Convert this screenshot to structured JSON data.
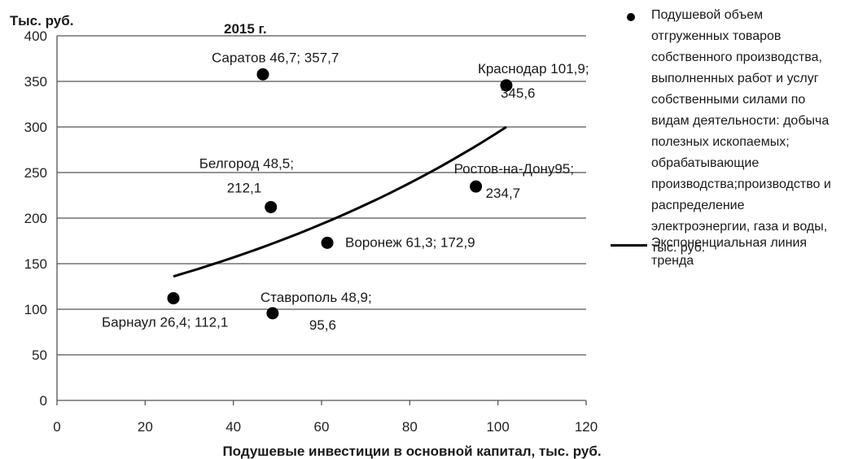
{
  "chart_data": {
    "type": "scatter",
    "title": "2015 г.",
    "xlabel": "Подушевые инвестиции  в основной  капитал,  тыс. руб.",
    "ylabel": "Тыс. руб.",
    "xlim": [
      0,
      120
    ],
    "ylim": [
      0,
      400
    ],
    "xticks": [
      "0",
      "20",
      "40",
      "60",
      "80",
      "100",
      "120"
    ],
    "yticks": [
      "0",
      "50",
      "100",
      "150",
      "200",
      "250",
      "300",
      "350",
      "400"
    ],
    "grid": "horizontal",
    "series": [
      {
        "name": "Подушевой объем\nотгруженных товаров\nсобственного производства,\nвыполненных работ и услуг\nсобственными силами по\nвидам деятельности: добыча\nполезных ископаемых;\nобрабатывающие\nпроизводства;производство и\nраспределение\nэлектроэнергии, газа и воды,\nтыс. руб.",
        "points": [
          {
            "x": 26.4,
            "y": 112.1,
            "label": "Барнаул 26,4; 112,1"
          },
          {
            "x": 46.7,
            "y": 357.7,
            "label": "Саратов 46,7; 357,7"
          },
          {
            "x": 48.5,
            "y": 212.1,
            "label": "Белгород 48,5;\n212,1"
          },
          {
            "x": 48.9,
            "y": 95.6,
            "label": "Ставрополь 48,9;\n95,6"
          },
          {
            "x": 61.3,
            "y": 172.9,
            "label": "Воронеж 61,3; 172,9"
          },
          {
            "x": 95,
            "y": 234.7,
            "label": "Ростов-на-Дону95;\n234,7"
          },
          {
            "x": 101.9,
            "y": 345.6,
            "label": "Краснодар 101,9;\n345,6"
          }
        ]
      },
      {
        "name": "Экспоненциальная линия\nтренда",
        "type": "trendline-exponential",
        "x": [
          26.4,
          101.9
        ],
        "y": [
          136,
          300
        ]
      }
    ],
    "legend": "right"
  }
}
